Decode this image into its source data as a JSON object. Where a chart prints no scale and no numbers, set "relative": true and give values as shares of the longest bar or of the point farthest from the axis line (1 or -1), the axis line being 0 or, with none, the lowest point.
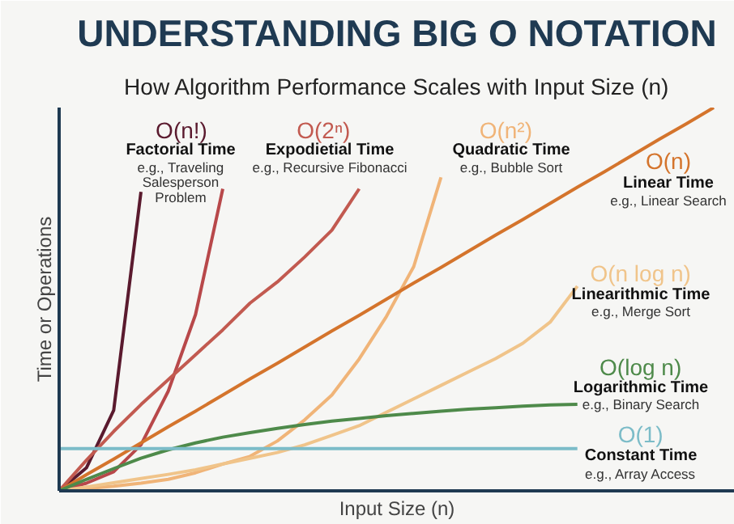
{
  "chart_data": {
    "type": "line",
    "relative": true,
    "title": "UNDERSTANDING BIG O NOTATION",
    "subtitle": "How Algorithm Performance Scales with Input Size (n)",
    "xlabel": "Input Size (n)",
    "ylabel": "Time or Operations",
    "line_style": "solid",
    "categories": [
      null,
      null,
      null,
      null,
      null,
      null,
      null,
      null,
      null,
      null,
      null,
      null,
      null,
      null,
      null,
      null,
      null,
      null,
      null,
      null,
      null,
      null,
      null,
      null,
      null
    ],
    "series": [
      {
        "name": "O(n!)",
        "color": "#5a1a2e",
        "values": [
          0,
          0.06,
          0.21,
          0.78,
          null,
          null,
          null,
          null,
          null,
          null,
          null,
          null,
          null,
          null,
          null,
          null,
          null,
          null,
          null,
          null,
          null,
          null,
          null,
          null,
          null
        ]
      },
      {
        "color": "#b8484a",
        "values": [
          0,
          0.02,
          0.05,
          0.12,
          0.26,
          0.46,
          0.788,
          null,
          null,
          null,
          null,
          null,
          null,
          null,
          null,
          null,
          null,
          null,
          null,
          null,
          null,
          null,
          null,
          null,
          null
        ]
      },
      {
        "name": "O(2ⁿ)",
        "color": "#c25a50",
        "values": [
          0,
          0.08,
          0.155,
          0.225,
          0.29,
          0.355,
          0.42,
          0.49,
          0.545,
          0.61,
          0.68,
          0.788,
          null,
          null,
          null,
          null,
          null,
          null,
          null,
          null,
          null,
          null,
          null,
          null,
          null
        ]
      },
      {
        "name": "O(n²)",
        "color": "#f0b478",
        "values": [
          0,
          0.006,
          0.012,
          0.02,
          0.03,
          0.047,
          0.07,
          0.09,
          0.13,
          0.185,
          0.25,
          0.344,
          0.455,
          0.585,
          0.818,
          null,
          null,
          null,
          null,
          null,
          null,
          null,
          null,
          null,
          null
        ]
      },
      {
        "name": "O(n)",
        "color": "#d4742c",
        "values": [
          0,
          0.042,
          0.083,
          0.125,
          0.167,
          0.208,
          0.25,
          0.292,
          0.333,
          0.375,
          0.417,
          0.458,
          0.5,
          0.542,
          0.583,
          0.625,
          0.667,
          0.708,
          0.75,
          0.792,
          0.833,
          0.875,
          0.917,
          0.958,
          1
        ]
      },
      {
        "name": "O(n log n)",
        "color": "#f0c48a",
        "values": [
          0,
          0.01,
          0.021,
          0.032,
          0.043,
          0.055,
          0.07,
          0.085,
          0.1,
          0.12,
          0.145,
          0.17,
          0.205,
          0.24,
          0.275,
          0.31,
          0.345,
          0.385,
          0.44,
          0.534,
          null,
          null,
          null,
          null,
          null
        ]
      },
      {
        "name": "O(log n)",
        "color": "#4e8a4a",
        "values": [
          0,
          0.03,
          0.058,
          0.085,
          0.107,
          0.125,
          0.14,
          0.152,
          0.163,
          0.173,
          0.182,
          0.189,
          0.196,
          0.202,
          0.208,
          0.213,
          0.217,
          0.221,
          0.224,
          0.226,
          null,
          null,
          null,
          null,
          null
        ]
      },
      {
        "name": "O(1)",
        "color": "#7cbcc8",
        "values": [
          0.11,
          0.11,
          0.11,
          0.11,
          0.11,
          0.11,
          0.11,
          0.11,
          0.11,
          0.11,
          0.11,
          0.11,
          0.11,
          0.11,
          0.11,
          0.11,
          0.11,
          0.11,
          0.11,
          0.11,
          null,
          null,
          null,
          null,
          null
        ]
      }
    ],
    "annotations": [
      "Factorial Time",
      "e.g., Traveling",
      "Salesperson",
      "Problem",
      "Expodietial Time",
      "e.g., Recursive Fibonacci",
      "Quadratic Time",
      "e.g., Bubble Sort",
      "Linear Time",
      "e.g., Linear Search",
      "Linearithmic Time",
      "e.g., Merge Sort",
      "Logarithmic Time",
      "e.g., Binary Search",
      "Constant Time",
      "e.g., Array Access"
    ]
  }
}
